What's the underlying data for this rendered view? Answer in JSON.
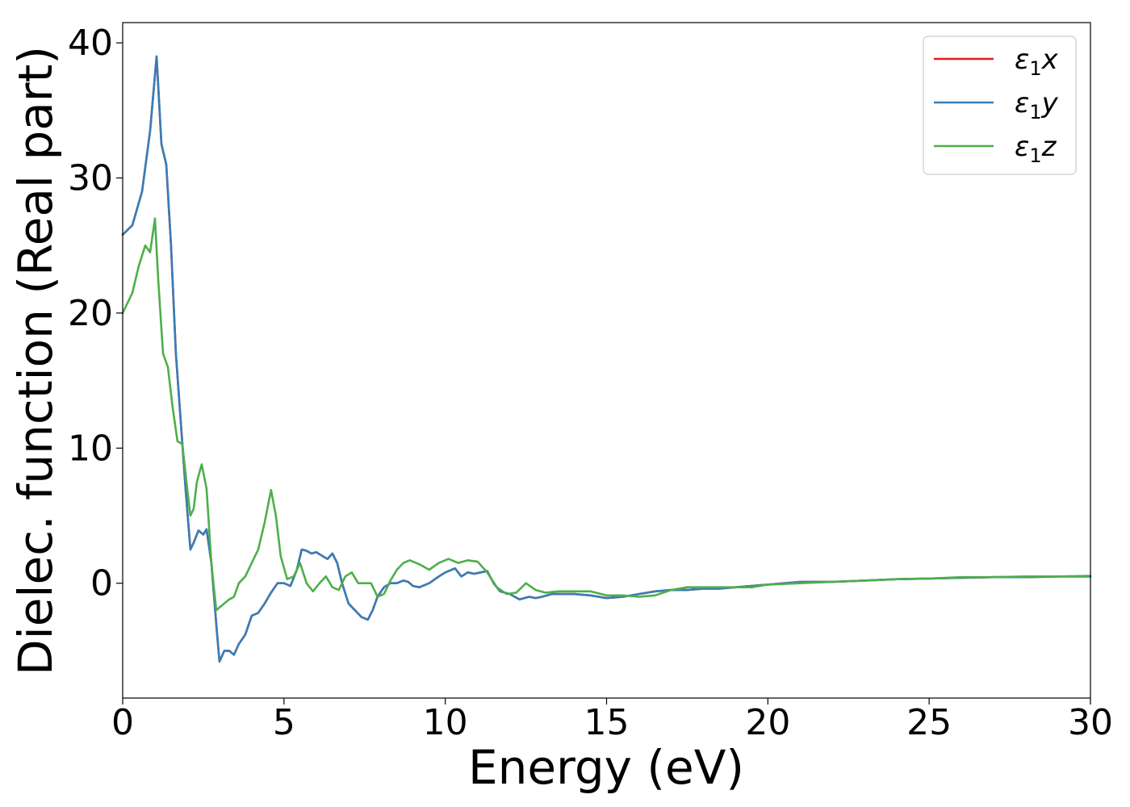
{
  "chart_data": {
    "type": "line",
    "title": "",
    "xlabel": "Energy (eV)",
    "ylabel": "Dielec. function (Real part)",
    "xlim": [
      0,
      30
    ],
    "ylim": [
      -8.5,
      41.5
    ],
    "xticks": [
      0,
      5,
      10,
      15,
      20,
      25,
      30
    ],
    "yticks": [
      0,
      10,
      20,
      30,
      40
    ],
    "xtick_labels": [
      "0",
      "5",
      "10",
      "15",
      "20",
      "25",
      "30"
    ],
    "ytick_labels": [
      "0",
      "10",
      "20",
      "30",
      "40"
    ],
    "grid": false,
    "legend_position": "top-right",
    "legend": [
      {
        "base": "ε",
        "sub": "1",
        "comp": "x",
        "color": "#e41a1c"
      },
      {
        "base": "ε",
        "sub": "1",
        "comp": "y",
        "color": "#377eb8"
      },
      {
        "base": "ε",
        "sub": "1",
        "comp": "z",
        "color": "#4daf4a"
      }
    ],
    "series": [
      {
        "name": "ε1x",
        "color": "#e41a1c",
        "x": [
          0,
          0.3,
          0.6,
          0.85,
          1.05,
          1.2,
          1.35,
          1.5,
          1.65,
          1.8,
          1.95,
          2.1,
          2.2,
          2.35,
          2.5,
          2.6,
          2.75,
          2.9,
          3.0,
          3.15,
          3.3,
          3.45,
          3.6,
          3.8,
          4.0,
          4.2,
          4.4,
          4.6,
          4.8,
          5.0,
          5.2,
          5.4,
          5.55,
          5.7,
          5.85,
          6.0,
          6.2,
          6.35,
          6.5,
          6.65,
          6.8,
          7.0,
          7.2,
          7.4,
          7.6,
          7.75,
          7.9,
          8.1,
          8.3,
          8.5,
          8.7,
          8.85,
          9.0,
          9.2,
          9.5,
          9.8,
          10.0,
          10.3,
          10.5,
          10.7,
          10.9,
          11.1,
          11.3,
          11.5,
          11.7,
          12.0,
          12.3,
          12.6,
          12.8,
          13.0,
          13.3,
          13.6,
          14.0,
          14.5,
          15.0,
          15.5,
          16.0,
          16.5,
          17.0,
          17.5,
          18.0,
          18.5,
          19.0,
          19.5,
          20.0,
          21.0,
          22.0,
          23.0,
          24.0,
          25.0,
          26.0,
          27.0,
          28.0,
          29.0,
          30.0
        ],
        "values": [
          25.8,
          26.5,
          29.0,
          33.5,
          39.0,
          32.5,
          31.0,
          25.0,
          17.0,
          12.0,
          7.0,
          2.5,
          3.0,
          3.9,
          3.6,
          4.0,
          1.5,
          -3.0,
          -5.8,
          -5.0,
          -5.0,
          -5.3,
          -4.5,
          -3.8,
          -2.4,
          -2.2,
          -1.5,
          -0.7,
          0.0,
          0.0,
          -0.2,
          1.0,
          2.5,
          2.4,
          2.2,
          2.3,
          2.0,
          1.8,
          2.2,
          1.5,
          0.0,
          -1.5,
          -2.0,
          -2.5,
          -2.7,
          -2.0,
          -1.0,
          -0.3,
          0.0,
          0.0,
          0.2,
          0.1,
          -0.2,
          -0.3,
          0.0,
          0.5,
          0.8,
          1.1,
          0.5,
          0.8,
          0.7,
          0.8,
          0.9,
          0.0,
          -0.6,
          -0.8,
          -1.2,
          -1.0,
          -1.1,
          -1.0,
          -0.8,
          -0.8,
          -0.8,
          -0.9,
          -1.1,
          -1.0,
          -0.8,
          -0.6,
          -0.5,
          -0.5,
          -0.4,
          -0.4,
          -0.3,
          -0.2,
          -0.1,
          0.1,
          0.1,
          0.2,
          0.3,
          0.35,
          0.4,
          0.45,
          0.45,
          0.5,
          0.5
        ]
      },
      {
        "name": "ε1y",
        "color": "#377eb8",
        "x": [
          0,
          0.3,
          0.6,
          0.85,
          1.05,
          1.2,
          1.35,
          1.5,
          1.65,
          1.8,
          1.95,
          2.1,
          2.2,
          2.35,
          2.5,
          2.6,
          2.75,
          2.9,
          3.0,
          3.15,
          3.3,
          3.45,
          3.6,
          3.8,
          4.0,
          4.2,
          4.4,
          4.6,
          4.8,
          5.0,
          5.2,
          5.4,
          5.55,
          5.7,
          5.85,
          6.0,
          6.2,
          6.35,
          6.5,
          6.65,
          6.8,
          7.0,
          7.2,
          7.4,
          7.6,
          7.75,
          7.9,
          8.1,
          8.3,
          8.5,
          8.7,
          8.85,
          9.0,
          9.2,
          9.5,
          9.8,
          10.0,
          10.3,
          10.5,
          10.7,
          10.9,
          11.1,
          11.3,
          11.5,
          11.7,
          12.0,
          12.3,
          12.6,
          12.8,
          13.0,
          13.3,
          13.6,
          14.0,
          14.5,
          15.0,
          15.5,
          16.0,
          16.5,
          17.0,
          17.5,
          18.0,
          18.5,
          19.0,
          19.5,
          20.0,
          21.0,
          22.0,
          23.0,
          24.0,
          25.0,
          26.0,
          27.0,
          28.0,
          29.0,
          30.0
        ],
        "values": [
          25.8,
          26.5,
          29.0,
          33.5,
          39.0,
          32.5,
          31.0,
          25.0,
          17.0,
          12.0,
          7.0,
          2.5,
          3.0,
          3.9,
          3.6,
          4.0,
          1.5,
          -3.0,
          -5.8,
          -5.0,
          -5.0,
          -5.3,
          -4.5,
          -3.8,
          -2.4,
          -2.2,
          -1.5,
          -0.7,
          0.0,
          0.0,
          -0.2,
          1.0,
          2.5,
          2.4,
          2.2,
          2.3,
          2.0,
          1.8,
          2.2,
          1.5,
          0.0,
          -1.5,
          -2.0,
          -2.5,
          -2.7,
          -2.0,
          -1.0,
          -0.3,
          0.0,
          0.0,
          0.2,
          0.1,
          -0.2,
          -0.3,
          0.0,
          0.5,
          0.8,
          1.1,
          0.5,
          0.8,
          0.7,
          0.8,
          0.9,
          0.0,
          -0.6,
          -0.8,
          -1.2,
          -1.0,
          -1.1,
          -1.0,
          -0.8,
          -0.8,
          -0.8,
          -0.9,
          -1.1,
          -1.0,
          -0.8,
          -0.6,
          -0.5,
          -0.5,
          -0.4,
          -0.4,
          -0.3,
          -0.2,
          -0.1,
          0.1,
          0.1,
          0.2,
          0.3,
          0.35,
          0.4,
          0.45,
          0.45,
          0.5,
          0.5
        ]
      },
      {
        "name": "ε1z",
        "color": "#4daf4a",
        "x": [
          0,
          0.3,
          0.5,
          0.7,
          0.85,
          1.0,
          1.1,
          1.25,
          1.4,
          1.55,
          1.7,
          1.85,
          2.0,
          2.1,
          2.2,
          2.3,
          2.45,
          2.6,
          2.75,
          2.9,
          3.0,
          3.15,
          3.3,
          3.45,
          3.6,
          3.8,
          4.0,
          4.2,
          4.4,
          4.6,
          4.75,
          4.9,
          5.1,
          5.3,
          5.5,
          5.7,
          5.9,
          6.1,
          6.3,
          6.5,
          6.7,
          6.9,
          7.1,
          7.3,
          7.5,
          7.7,
          7.9,
          8.1,
          8.3,
          8.5,
          8.7,
          8.9,
          9.2,
          9.5,
          9.8,
          10.1,
          10.4,
          10.7,
          11.0,
          11.3,
          11.6,
          11.9,
          12.2,
          12.5,
          12.8,
          13.1,
          13.5,
          14.0,
          14.5,
          15.0,
          15.5,
          16.0,
          16.5,
          17.0,
          17.5,
          18.0,
          18.5,
          19.0,
          19.5,
          20.0,
          21.0,
          22.0,
          23.0,
          24.0,
          25.0,
          26.0,
          27.0,
          28.0,
          29.0,
          30.0
        ],
        "values": [
          20.0,
          21.5,
          23.5,
          25.0,
          24.5,
          27.0,
          22.5,
          17.0,
          16.0,
          13.0,
          10.5,
          10.3,
          7.0,
          5.0,
          5.5,
          7.5,
          8.8,
          7.0,
          1.5,
          -2.0,
          -1.8,
          -1.5,
          -1.2,
          -1.0,
          0.0,
          0.5,
          1.5,
          2.5,
          4.5,
          6.9,
          5.0,
          2.0,
          0.3,
          0.5,
          1.5,
          0.0,
          -0.6,
          0.0,
          0.5,
          -0.3,
          -0.5,
          0.5,
          0.8,
          0.0,
          0.0,
          0.0,
          -1.0,
          -0.8,
          0.2,
          1.0,
          1.5,
          1.7,
          1.4,
          1.0,
          1.5,
          1.8,
          1.5,
          1.7,
          1.6,
          0.8,
          -0.3,
          -0.8,
          -0.7,
          0.0,
          -0.5,
          -0.7,
          -0.6,
          -0.6,
          -0.6,
          -0.9,
          -0.9,
          -1.0,
          -0.9,
          -0.5,
          -0.3,
          -0.3,
          -0.3,
          -0.3,
          -0.3,
          -0.1,
          0.0,
          0.1,
          0.2,
          0.3,
          0.35,
          0.45,
          0.45,
          0.5,
          0.5,
          0.55
        ]
      }
    ]
  }
}
